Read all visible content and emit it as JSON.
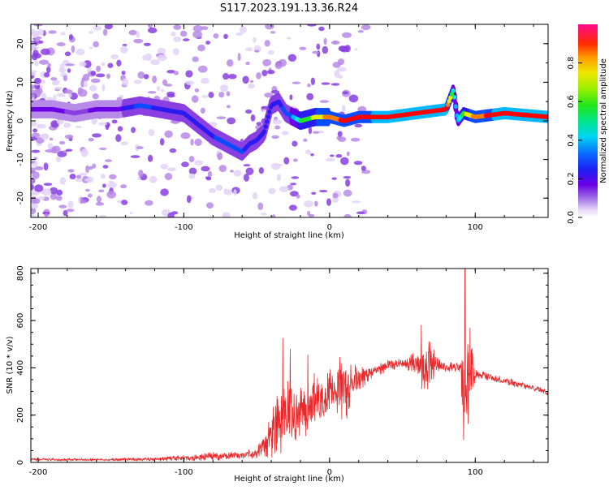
{
  "title": "S117.2023.191.13.36.R24",
  "colors": {
    "snr_line": "#e8282a",
    "spectrogram_palette": [
      "#ffffff",
      "#e3d4f7",
      "#b88ae8",
      "#8a3fe0",
      "#6a00e6",
      "#2a1cf0",
      "#0a4cff",
      "#00b8ff",
      "#00f0d0",
      "#22e620",
      "#e6f000",
      "#ff8000",
      "#ff0000",
      "#ff0a8c"
    ]
  },
  "chart_data": [
    {
      "type": "heatmap",
      "name": "spectrogram",
      "xlabel": "Height of straight line (km)",
      "ylabel": "Frequency (Hz)",
      "xlim": [
        -205,
        150
      ],
      "ylim": [
        -25,
        25
      ],
      "xticks": [
        "-200",
        "-100",
        "0",
        "100"
      ],
      "xtick_values": [
        -200,
        -100,
        0,
        100
      ],
      "yticks": [
        "20",
        "10",
        "0",
        "-10",
        "-20"
      ],
      "ytick_values": [
        20,
        10,
        0,
        -10,
        -20
      ],
      "colorbar": {
        "label": "Normalized spectral amplitude",
        "range": [
          0,
          1
        ],
        "ticks": [
          "0.0",
          "0.2",
          "0.4",
          "0.6",
          "0.8"
        ],
        "tick_values": [
          0,
          0.2,
          0.4,
          0.6,
          0.8
        ]
      },
      "ridge": {
        "x": [
          -205,
          -190,
          -175,
          -160,
          -145,
          -130,
          -115,
          -100,
          -90,
          -80,
          -70,
          -60,
          -55,
          -50,
          -45,
          -40,
          -35,
          -30,
          -25,
          -20,
          -10,
          0,
          10,
          20,
          40,
          60,
          80,
          85,
          88,
          92,
          100,
          120,
          150
        ],
        "freq": [
          3,
          3,
          2,
          3,
          3,
          4,
          3,
          2,
          -1,
          -4,
          -6,
          -8,
          -6,
          -5,
          -3,
          4,
          5,
          2,
          1,
          0,
          1,
          1,
          0,
          1,
          1,
          2,
          3,
          8,
          0,
          2,
          1,
          2,
          1
        ],
        "amplitude": [
          0.3,
          0.3,
          0.25,
          0.28,
          0.32,
          0.45,
          0.4,
          0.38,
          0.4,
          0.42,
          0.45,
          0.45,
          0.35,
          0.4,
          0.4,
          0.35,
          0.4,
          0.45,
          0.5,
          0.65,
          0.75,
          0.85,
          0.9,
          0.9,
          0.92,
          0.95,
          0.95,
          0.6,
          0.55,
          0.7,
          0.85,
          0.95,
          0.95
        ]
      }
    },
    {
      "type": "line",
      "name": "snr",
      "xlabel": "Height of straight line (km)",
      "ylabel": "SNR (10 * v/v)",
      "xlim": [
        -205,
        150
      ],
      "ylim": [
        0,
        820
      ],
      "xticks": [
        "-200",
        "-100",
        "0",
        "100"
      ],
      "xtick_values": [
        -200,
        -100,
        0,
        100
      ],
      "yticks": [
        "0",
        "200",
        "400",
        "600",
        "800"
      ],
      "ytick_values": [
        0,
        200,
        400,
        600,
        800
      ],
      "envelope": {
        "x": [
          -205,
          -150,
          -120,
          -100,
          -80,
          -60,
          -50,
          -45,
          -40,
          -35,
          -30,
          -25,
          -20,
          -15,
          -10,
          -5,
          0,
          5,
          10,
          15,
          20,
          30,
          40,
          50,
          60,
          65,
          70,
          75,
          80,
          85,
          90,
          92,
          95,
          100,
          110,
          120,
          130,
          140,
          150
        ],
        "mean": [
          12,
          12,
          14,
          18,
          25,
          30,
          40,
          70,
          120,
          160,
          190,
          210,
          220,
          240,
          255,
          265,
          290,
          320,
          300,
          330,
          360,
          385,
          410,
          420,
          420,
          410,
          420,
          410,
          400,
          405,
          400,
          380,
          390,
          375,
          360,
          345,
          330,
          315,
          295
        ],
        "spread": [
          6,
          6,
          8,
          12,
          18,
          15,
          25,
          50,
          110,
          150,
          150,
          140,
          120,
          130,
          130,
          120,
          110,
          120,
          160,
          80,
          60,
          25,
          25,
          20,
          50,
          130,
          90,
          30,
          20,
          20,
          20,
          330,
          250,
          20,
          15,
          15,
          15,
          12,
          12
        ]
      },
      "peaks": [
        {
          "x": -32,
          "y": 525
        },
        {
          "x": -27,
          "y": 480
        },
        {
          "x": -15,
          "y": 455
        },
        {
          "x": 7,
          "y": 445
        },
        {
          "x": 63,
          "y": 580
        },
        {
          "x": 93,
          "y": 820
        }
      ]
    }
  ]
}
